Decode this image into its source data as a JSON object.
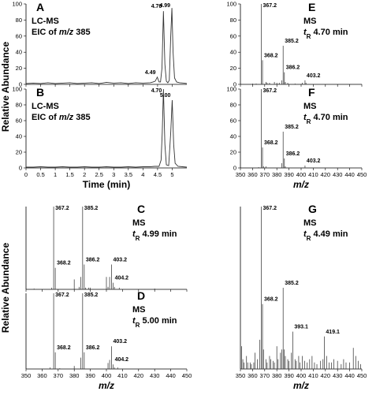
{
  "chart_data": [
    {
      "type": "line",
      "panel": "A",
      "color": "#333333",
      "text_lines": [
        [
          {
            "text": "LC-MS"
          }
        ],
        [
          {
            "text": "EIC of "
          },
          {
            "text": "m/z",
            "style": "italic"
          },
          {
            "text": " 385"
          }
        ]
      ],
      "ylabel": "Relative Abundance",
      "x": [
        0,
        0.25,
        0.5,
        0.75,
        1,
        1.25,
        1.5,
        1.75,
        2,
        2.25,
        2.5,
        2.75,
        3,
        3.25,
        3.5,
        3.75,
        4,
        4.25,
        4.35,
        4.42,
        4.49,
        4.55,
        4.6,
        4.65,
        4.7,
        4.75,
        4.8,
        4.85,
        4.9,
        4.95,
        4.99,
        5.03,
        5.08,
        5.15,
        5.25,
        5.4,
        5.5
      ],
      "values": [
        1,
        1.5,
        1,
        2,
        1,
        1.5,
        2,
        1,
        1.5,
        2,
        1,
        2.5,
        1.5,
        2,
        1,
        2,
        1.5,
        2,
        3,
        4,
        9,
        3,
        3,
        20,
        91,
        25,
        4,
        2,
        5,
        60,
        95,
        40,
        8,
        3,
        2,
        1.5,
        1
      ],
      "annotations": [
        {
          "text": "4.49",
          "x": 4.49,
          "y": 9
        },
        {
          "text": "4.70",
          "x": 4.7,
          "y": 91
        },
        {
          "text": "4.99",
          "x": 4.99,
          "y": 95
        }
      ],
      "xlim": [
        0,
        5.5
      ],
      "ylim": [
        0,
        100
      ],
      "xticks": [
        0,
        0.5,
        1,
        1.5,
        2,
        2.5,
        3,
        3.5,
        4,
        4.5,
        5
      ],
      "yticks": [
        0,
        20,
        40,
        60,
        80,
        100
      ],
      "show_xtick_labels": false
    },
    {
      "type": "line",
      "panel": "B",
      "color": "#333333",
      "text_lines": [
        [
          {
            "text": "LC-MS"
          }
        ],
        [
          {
            "text": "EIC of "
          },
          {
            "text": "m/z",
            "style": "italic"
          },
          {
            "text": " 385"
          }
        ]
      ],
      "xlabel": "Time (min)",
      "x": [
        0,
        0.25,
        0.5,
        0.75,
        1,
        1.25,
        1.5,
        1.75,
        2,
        2.25,
        2.5,
        2.75,
        3,
        3.25,
        3.5,
        3.75,
        4,
        4.25,
        4.4,
        4.55,
        4.62,
        4.66,
        4.7,
        4.75,
        4.8,
        4.88,
        4.95,
        5,
        5.05,
        5.1,
        5.2,
        5.35,
        5.5
      ],
      "values": [
        1,
        1,
        1.5,
        1,
        1,
        1.5,
        1,
        1,
        1.5,
        1,
        1,
        1.5,
        1,
        1,
        1.5,
        1,
        1.5,
        1.5,
        2,
        2,
        10,
        45,
        100,
        30,
        4,
        3,
        45,
        86,
        30,
        6,
        2,
        1.5,
        1
      ],
      "annotations": [
        {
          "text": "4.70",
          "x": 4.7,
          "y": 100
        },
        {
          "text": "5.00",
          "x": 5,
          "y": 86
        }
      ],
      "xlim": [
        0,
        5.5
      ],
      "ylim": [
        0,
        100
      ],
      "xticks": [
        0,
        0.5,
        1,
        1.5,
        2,
        2.5,
        3,
        3.5,
        4,
        4.5,
        5
      ],
      "yticks": [
        0,
        20,
        40,
        60,
        80,
        100
      ],
      "show_xtick_labels": true
    },
    {
      "type": "stem",
      "panel": "E",
      "color": "#444444",
      "text_lines": [
        [
          {
            "text": "MS"
          }
        ],
        [
          {
            "text": "t",
            "style": "italic"
          },
          {
            "text": "R",
            "style": "sub"
          },
          {
            "text": " 4.70 min"
          }
        ]
      ],
      "x": [
        360,
        363,
        367.2,
        368.2,
        371,
        372,
        374,
        378,
        380,
        382,
        384,
        385.2,
        386.2,
        387,
        389,
        395,
        401,
        403.2,
        404
      ],
      "values": [
        1,
        1,
        100,
        30,
        3,
        2,
        2,
        3,
        2,
        2,
        5,
        48,
        15,
        3,
        2,
        1,
        2,
        5,
        2
      ],
      "annotations": [
        {
          "text": "367.2",
          "x": 367.2,
          "y": 100
        },
        {
          "text": "368.2",
          "x": 368.2,
          "y": 30
        },
        {
          "text": "385.2",
          "x": 385.2,
          "y": 48
        },
        {
          "text": "386.2",
          "x": 386.2,
          "y": 15
        },
        {
          "text": "403.2",
          "x": 403.2,
          "y": 5
        }
      ],
      "xlim": [
        350,
        450
      ],
      "ylim": [
        0,
        100
      ],
      "xticks": [
        350,
        360,
        370,
        380,
        390,
        400,
        410,
        420,
        430,
        440,
        450
      ],
      "yticks": [
        0,
        20,
        40,
        60,
        80,
        100
      ],
      "show_xtick_labels": false
    },
    {
      "type": "stem",
      "panel": "F",
      "color": "#444444",
      "text_lines": [
        [
          {
            "text": "MS"
          }
        ],
        [
          {
            "text": "t",
            "style": "italic"
          },
          {
            "text": "R",
            "style": "sub"
          },
          {
            "text": " 4.70 min"
          }
        ]
      ],
      "xlabel": "m/z",
      "x": [
        365,
        367.2,
        368.2,
        369,
        371,
        384,
        385.2,
        386.2,
        387,
        403.2
      ],
      "values": [
        1,
        100,
        26,
        2,
        2,
        6,
        46,
        12,
        2,
        3
      ],
      "annotations": [
        {
          "text": "367.2",
          "x": 367.2,
          "y": 100
        },
        {
          "text": "368.2",
          "x": 368.2,
          "y": 26
        },
        {
          "text": "385.2",
          "x": 385.2,
          "y": 46
        },
        {
          "text": "386.2",
          "x": 386.2,
          "y": 12
        },
        {
          "text": "403.2",
          "x": 403.2,
          "y": 3
        }
      ],
      "xlim": [
        350,
        450
      ],
      "ylim": [
        0,
        100
      ],
      "xticks": [
        350,
        360,
        370,
        380,
        390,
        400,
        410,
        420,
        430,
        440,
        450
      ],
      "yticks": [
        0,
        20,
        40,
        60,
        80,
        100
      ],
      "show_xtick_labels": true
    },
    {
      "type": "stem",
      "panel": "C",
      "color": "#444444",
      "text_lines": [
        [
          {
            "text": "MS"
          }
        ],
        [
          {
            "text": "t",
            "style": "italic"
          },
          {
            "text": "R",
            "style": "sub"
          },
          {
            "text": " 4.99 min"
          }
        ]
      ],
      "ylabel": "Relative Abundance",
      "x": [
        355,
        366,
        367.2,
        368.2,
        380,
        383,
        384,
        385.2,
        386.2,
        387,
        389,
        390,
        400,
        401,
        402,
        403.2,
        404.2,
        405,
        408,
        430
      ],
      "values": [
        1,
        2,
        100,
        26,
        12,
        3,
        15,
        100,
        30,
        2,
        2,
        2,
        15,
        3,
        15,
        30,
        8,
        3,
        2,
        1
      ],
      "annotations": [
        {
          "text": "367.2",
          "x": 367.2,
          "y": 100
        },
        {
          "text": "385.2",
          "x": 385.2,
          "y": 100
        },
        {
          "text": "368.2",
          "x": 368.2,
          "y": 26
        },
        {
          "text": "386.2",
          "x": 386.2,
          "y": 30
        },
        {
          "text": "403.2",
          "x": 403.2,
          "y": 30
        },
        {
          "text": "404.2",
          "x": 404.2,
          "y": 8
        }
      ],
      "xlim": [
        350,
        450
      ],
      "ylim": [
        0,
        100
      ],
      "xticks": [
        350,
        360,
        370,
        380,
        390,
        400,
        410,
        420,
        430,
        440,
        450
      ],
      "show_xtick_labels": false
    },
    {
      "type": "stem",
      "panel": "D",
      "color": "#444444",
      "text_lines": [
        [
          {
            "text": "MS"
          }
        ],
        [
          {
            "text": "t",
            "style": "italic"
          },
          {
            "text": "R",
            "style": "sub"
          },
          {
            "text": " 5.00 min"
          }
        ]
      ],
      "xlabel": "m/z",
      "x": [
        365,
        367.2,
        368.2,
        371,
        380,
        384,
        385.2,
        386.2,
        401,
        402,
        403.2,
        404.2,
        405,
        407
      ],
      "values": [
        2,
        100,
        22,
        1,
        4,
        15,
        100,
        22,
        8,
        12,
        30,
        6,
        2,
        2
      ],
      "annotations": [
        {
          "text": "367.2",
          "x": 367.2,
          "y": 100
        },
        {
          "text": "385.2",
          "x": 385.2,
          "y": 100
        },
        {
          "text": "368.2",
          "x": 368.2,
          "y": 22
        },
        {
          "text": "386.2",
          "x": 386.2,
          "y": 22
        },
        {
          "text": "403.2",
          "x": 403.2,
          "y": 30
        },
        {
          "text": "404.2",
          "x": 404.2,
          "y": 6
        }
      ],
      "xlim": [
        350,
        450
      ],
      "ylim": [
        0,
        100
      ],
      "xticks": [
        350,
        360,
        370,
        380,
        390,
        400,
        410,
        420,
        430,
        440,
        450
      ],
      "show_xtick_labels": true
    },
    {
      "type": "stem",
      "panel": "G",
      "color": "#444444",
      "text_lines": [
        [
          {
            "text": "MS"
          }
        ],
        [
          {
            "text": "t",
            "style": "italic"
          },
          {
            "text": "R",
            "style": "sub"
          },
          {
            "text": " 4.49 min"
          }
        ]
      ],
      "xlabel": "m/z",
      "x": [
        351,
        352,
        353,
        355,
        356,
        358,
        359,
        361,
        362,
        364,
        366,
        367.2,
        368.2,
        369,
        371,
        372,
        374,
        375,
        377,
        378,
        380,
        381,
        383,
        384,
        385.2,
        386,
        387,
        389,
        390,
        392,
        393.1,
        395,
        396,
        398,
        399,
        401,
        403,
        405,
        407,
        409,
        411,
        413,
        416,
        418,
        419.1,
        421,
        423,
        425,
        427,
        430,
        433,
        435,
        437,
        440,
        443,
        445,
        447,
        449
      ],
      "values": [
        14,
        6,
        4,
        8,
        4,
        4,
        3,
        4,
        10,
        6,
        18,
        100,
        40,
        12,
        6,
        4,
        8,
        6,
        5,
        4,
        14,
        6,
        10,
        12,
        50,
        12,
        8,
        6,
        5,
        10,
        23,
        6,
        5,
        8,
        4,
        8,
        5,
        4,
        6,
        8,
        4,
        3,
        5,
        6,
        20,
        8,
        4,
        4,
        6,
        5,
        3,
        6,
        4,
        4,
        13,
        8,
        5,
        3
      ],
      "annotations": [
        {
          "text": "367.2",
          "x": 367.2,
          "y": 100
        },
        {
          "text": "368.2",
          "x": 368.2,
          "y": 40
        },
        {
          "text": "385.2",
          "x": 385.2,
          "y": 50
        },
        {
          "text": "393.1",
          "x": 393.1,
          "y": 23
        },
        {
          "text": "419.1",
          "x": 419.1,
          "y": 20
        }
      ],
      "xlim": [
        350,
        450
      ],
      "ylim": [
        0,
        100
      ],
      "xticks": [
        350,
        360,
        370,
        380,
        390,
        400,
        410,
        420,
        430,
        440,
        450
      ],
      "show_xtick_labels": true
    }
  ]
}
